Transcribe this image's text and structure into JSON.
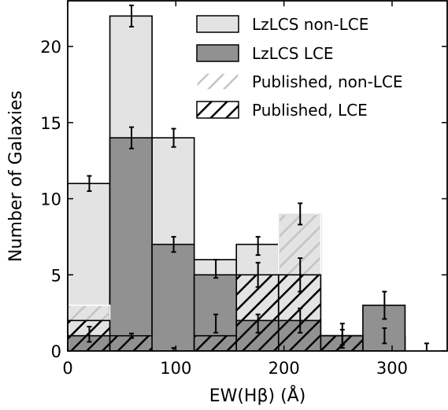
{
  "chart_data": {
    "type": "bar",
    "xlabel": "EW(Hβ) (Å)",
    "ylabel": "Number of Galaxies",
    "xlim": [
      0,
      351
    ],
    "ylim": [
      0,
      23
    ],
    "xticks": [
      0,
      100,
      200,
      300
    ],
    "yticks": [
      0,
      5,
      10,
      15,
      20
    ],
    "tick_labels_x": [
      "0",
      "100",
      "200",
      "300"
    ],
    "tick_labels_y": [
      "0",
      "5",
      "10",
      "15",
      "20"
    ],
    "bin_edges": [
      0,
      39,
      78,
      117,
      156,
      195,
      234,
      273,
      312,
      351
    ],
    "colors": {
      "lzlcs_non_lce": "#e3e3e3",
      "lzlcs_lce": "#919191",
      "published_non_lce_hatch": "#c4c4c4",
      "published_lce_hatch": "#000000"
    },
    "series": [
      {
        "name": "LzLCS non-LCE",
        "style": "light-fill",
        "values": [
          11,
          22,
          14,
          6,
          7,
          9,
          1,
          1,
          0
        ]
      },
      {
        "name": "LzLCS LCE",
        "style": "dark-fill",
        "values": [
          1,
          14,
          7,
          5,
          2,
          2,
          1,
          3,
          0
        ]
      },
      {
        "name": "Published, non-LCE",
        "style": "light-hatch",
        "values": [
          3,
          1,
          0,
          0,
          5,
          9,
          0,
          0,
          0
        ]
      },
      {
        "name": "Published, LCE",
        "style": "black-hatch",
        "values": [
          2,
          1,
          0,
          1,
          5,
          5,
          1,
          0,
          0
        ]
      }
    ],
    "error_bars": [
      {
        "x": 20,
        "y": 11,
        "err": 0.5
      },
      {
        "x": 20,
        "y": 1.1,
        "err": 0.5
      },
      {
        "x": 59,
        "y": 22,
        "err": 0.7
      },
      {
        "x": 59,
        "y": 14,
        "err": 0.7
      },
      {
        "x": 59,
        "y": 1,
        "err": 0.15
      },
      {
        "x": 98,
        "y": 14,
        "err": 0.6
      },
      {
        "x": 98,
        "y": 7,
        "err": 0.5
      },
      {
        "x": 98,
        "y": 0.1,
        "err": 0.1
      },
      {
        "x": 137,
        "y": 5.4,
        "err": 0.6
      },
      {
        "x": 137,
        "y": 1.8,
        "err": 0.6
      },
      {
        "x": 176,
        "y": 6.9,
        "err": 0.6
      },
      {
        "x": 176,
        "y": 5,
        "err": 0.8
      },
      {
        "x": 176,
        "y": 1.8,
        "err": 0.6
      },
      {
        "x": 215,
        "y": 9,
        "err": 0.7
      },
      {
        "x": 215,
        "y": 5,
        "err": 1.1
      },
      {
        "x": 215,
        "y": 2,
        "err": 0.8
      },
      {
        "x": 254,
        "y": 1,
        "err": 0.8
      },
      {
        "x": 254,
        "y": 0.9,
        "err": 0.5
      },
      {
        "x": 293,
        "y": 3,
        "err": 0.9
      },
      {
        "x": 293,
        "y": 1,
        "err": 0.5
      },
      {
        "x": 332,
        "y": 0.15,
        "err": 0.35
      }
    ],
    "legend_position": "top-right"
  }
}
